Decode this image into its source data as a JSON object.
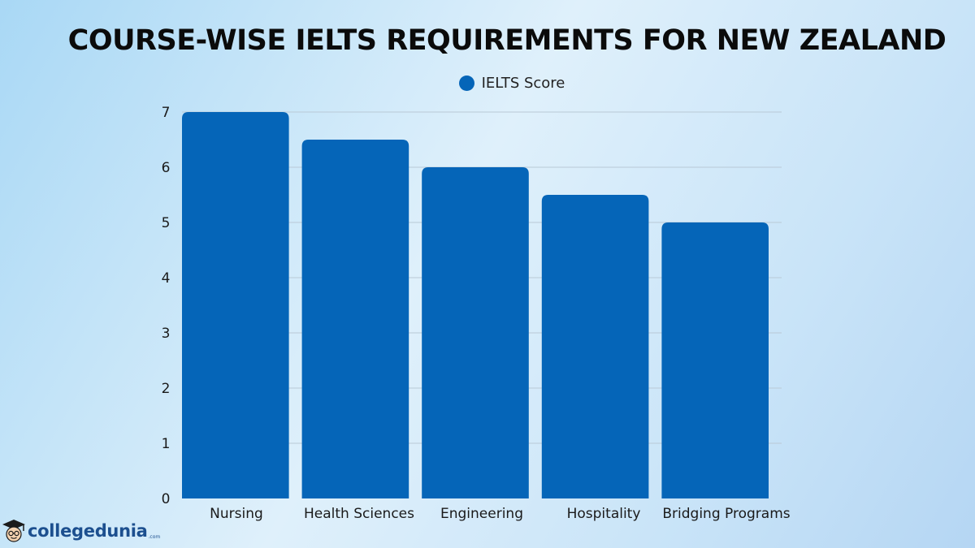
{
  "chart_data": {
    "type": "bar",
    "title": "COURSE-WISE IELTS REQUIREMENTS FOR NEW ZEALAND",
    "categories": [
      "Nursing",
      "Health Sciences",
      "Engineering",
      "Hospitality",
      "Bridging Programs"
    ],
    "series": [
      {
        "name": "IELTS Score",
        "values": [
          7,
          6.5,
          6,
          5.5,
          5
        ]
      }
    ],
    "ylim": [
      0,
      7
    ],
    "yticks": [
      0,
      1,
      2,
      3,
      4,
      5,
      6,
      7
    ],
    "grid": true,
    "legend": "top-center",
    "color": "#0565b8"
  },
  "branding": {
    "logo_text": "collegedunia",
    "logo_suffix": ".com"
  }
}
